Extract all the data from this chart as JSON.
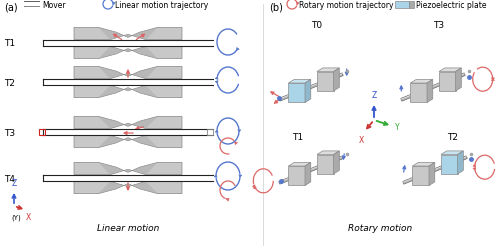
{
  "title_a": "(a)",
  "title_b": "(b)",
  "legend_mover": "Mover",
  "legend_linear": "Linear motion trajectory",
  "legend_rotary": "Rotary motion trajectory",
  "legend_piezo": "Piezoelectric plate",
  "label_linear": "Linear motion",
  "label_rotary": "Rotary motion",
  "bg_color": "#ffffff",
  "gray_body": "#aaaaaa",
  "gray_body2": "#c8c8c8",
  "gray_dark": "#888888",
  "gray_light": "#d8d8d8",
  "gray_top": "#bbbbbb",
  "gray_side": "#999999",
  "blue_arrow": "#5577cc",
  "red_arrow": "#dd6666",
  "piezo_blue": "#aad4e8",
  "piezo_top": "#c8e4f0",
  "axis_z": "#3355cc",
  "axis_x": "#cc3333",
  "axis_y": "#33aa33",
  "mover_color": "#606060",
  "mover_edge": "#222222"
}
